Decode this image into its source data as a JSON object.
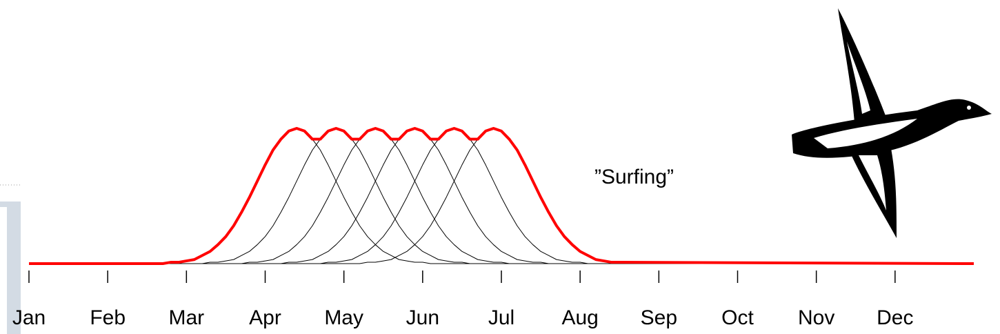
{
  "chart_data": {
    "type": "line",
    "annotation": "”Surfing”",
    "x": [
      0,
      1.5,
      1.6,
      1.7,
      1.8,
      1.9,
      2.0,
      2.1,
      2.2,
      2.3,
      2.4,
      2.5,
      2.6,
      2.7,
      2.8,
      2.9,
      3.0,
      3.1,
      3.2,
      3.3,
      3.4,
      3.5,
      3.6,
      3.7,
      3.8,
      3.9,
      4.0,
      4.1,
      4.2,
      4.3,
      4.4,
      4.5,
      4.6,
      4.7,
      4.8,
      4.9,
      5.0,
      5.1,
      5.2,
      5.3,
      5.4,
      5.5,
      5.6,
      5.7,
      5.8,
      5.9,
      6.0,
      6.1,
      6.2,
      6.3,
      6.4,
      6.5,
      6.6,
      6.7,
      6.8,
      6.9,
      7.0,
      7.1,
      7.2,
      7.3,
      7.4,
      7.5,
      12
    ],
    "xlim": [
      0,
      12
    ],
    "xticks": [
      {
        "value": 0,
        "label": "Jan"
      },
      {
        "value": 1,
        "label": "Feb"
      },
      {
        "value": 2,
        "label": "Mar"
      },
      {
        "value": 3,
        "label": "Apr"
      },
      {
        "value": 4,
        "label": "May"
      },
      {
        "value": 5,
        "label": "Jun"
      },
      {
        "value": 6,
        "label": "Jul"
      },
      {
        "value": 7,
        "label": "Aug"
      },
      {
        "value": 8,
        "label": "Sep"
      },
      {
        "value": 9,
        "label": "Oct"
      },
      {
        "value": 10,
        "label": "Nov"
      },
      {
        "value": 11,
        "label": "Dec"
      }
    ],
    "ylim": [
      0,
      1
    ],
    "series": [
      {
        "color": "#000000",
        "linewidth": 1,
        "values": [
          0,
          0,
          0,
          0,
          0.01,
          0.01,
          0.02,
          0.03,
          0.06,
          0.09,
          0.14,
          0.2,
          0.28,
          0.38,
          0.49,
          0.61,
          0.73,
          0.84,
          0.92,
          0.98,
          1,
          0.98,
          0.92,
          0.84,
          0.73,
          0.61,
          0.49,
          0.38,
          0.28,
          0.2,
          0.14,
          0.09,
          0.06,
          0.03,
          0.02,
          0.01,
          0.01,
          0,
          0,
          0,
          0,
          0,
          0,
          0,
          0,
          0,
          0,
          0,
          0,
          0,
          0,
          0,
          0,
          0,
          0,
          0,
          0,
          0,
          0,
          0,
          0,
          0,
          0
        ]
      },
      {
        "color": "#000000",
        "linewidth": 1,
        "values": [
          0,
          0,
          0,
          0,
          0,
          0,
          0,
          0,
          0,
          0.01,
          0.01,
          0.02,
          0.03,
          0.06,
          0.09,
          0.14,
          0.2,
          0.28,
          0.38,
          0.49,
          0.61,
          0.73,
          0.84,
          0.92,
          0.98,
          1,
          0.98,
          0.92,
          0.84,
          0.73,
          0.61,
          0.49,
          0.38,
          0.28,
          0.2,
          0.14,
          0.09,
          0.06,
          0.03,
          0.02,
          0.01,
          0.01,
          0,
          0,
          0,
          0,
          0,
          0,
          0,
          0,
          0,
          0,
          0,
          0,
          0,
          0,
          0,
          0,
          0,
          0,
          0,
          0,
          0
        ]
      },
      {
        "color": "#000000",
        "linewidth": 1,
        "values": [
          0,
          0,
          0,
          0,
          0,
          0,
          0,
          0,
          0,
          0,
          0,
          0,
          0,
          0,
          0.01,
          0.01,
          0.02,
          0.03,
          0.06,
          0.09,
          0.14,
          0.2,
          0.28,
          0.38,
          0.49,
          0.61,
          0.73,
          0.84,
          0.92,
          0.98,
          1,
          0.98,
          0.92,
          0.84,
          0.73,
          0.61,
          0.49,
          0.38,
          0.28,
          0.2,
          0.14,
          0.09,
          0.06,
          0.03,
          0.02,
          0.01,
          0.01,
          0,
          0,
          0,
          0,
          0,
          0,
          0,
          0,
          0,
          0,
          0,
          0,
          0,
          0,
          0,
          0
        ]
      },
      {
        "color": "#000000",
        "linewidth": 1,
        "values": [
          0,
          0,
          0,
          0,
          0,
          0,
          0,
          0,
          0,
          0,
          0,
          0,
          0,
          0,
          0,
          0,
          0,
          0,
          0,
          0.01,
          0.01,
          0.02,
          0.03,
          0.06,
          0.09,
          0.14,
          0.2,
          0.28,
          0.38,
          0.49,
          0.61,
          0.73,
          0.84,
          0.92,
          0.98,
          1,
          0.98,
          0.92,
          0.84,
          0.73,
          0.61,
          0.49,
          0.38,
          0.28,
          0.2,
          0.14,
          0.09,
          0.06,
          0.03,
          0.02,
          0.01,
          0.01,
          0,
          0,
          0,
          0,
          0,
          0,
          0,
          0,
          0,
          0,
          0
        ]
      },
      {
        "color": "#000000",
        "linewidth": 1,
        "values": [
          0,
          0,
          0,
          0,
          0,
          0,
          0,
          0,
          0,
          0,
          0,
          0,
          0,
          0,
          0,
          0,
          0,
          0,
          0,
          0,
          0,
          0,
          0,
          0,
          0.01,
          0.01,
          0.02,
          0.03,
          0.06,
          0.09,
          0.14,
          0.2,
          0.28,
          0.38,
          0.49,
          0.61,
          0.73,
          0.84,
          0.92,
          0.98,
          1,
          0.98,
          0.92,
          0.84,
          0.73,
          0.61,
          0.49,
          0.38,
          0.28,
          0.2,
          0.14,
          0.09,
          0.06,
          0.03,
          0.02,
          0.01,
          0.01,
          0,
          0,
          0,
          0,
          0,
          0
        ]
      },
      {
        "color": "#000000",
        "linewidth": 1,
        "values": [
          0,
          0,
          0,
          0,
          0,
          0,
          0,
          0,
          0,
          0,
          0,
          0,
          0,
          0,
          0,
          0,
          0,
          0,
          0,
          0,
          0,
          0,
          0,
          0,
          0,
          0,
          0,
          0,
          0,
          0.01,
          0.01,
          0.02,
          0.03,
          0.06,
          0.09,
          0.14,
          0.2,
          0.28,
          0.38,
          0.49,
          0.61,
          0.73,
          0.84,
          0.92,
          0.98,
          1,
          0.98,
          0.92,
          0.84,
          0.73,
          0.61,
          0.49,
          0.38,
          0.28,
          0.2,
          0.14,
          0.09,
          0.06,
          0.03,
          0.02,
          0.01,
          0.01,
          0
        ]
      },
      {
        "color": "#ff0000",
        "linewidth": 4,
        "values": [
          0,
          0,
          0,
          0,
          0.01,
          0.01,
          0.02,
          0.03,
          0.06,
          0.09,
          0.14,
          0.2,
          0.28,
          0.38,
          0.49,
          0.61,
          0.73,
          0.84,
          0.92,
          0.98,
          1,
          0.98,
          0.92,
          0.92,
          0.98,
          1,
          0.98,
          0.92,
          0.92,
          0.98,
          1,
          0.98,
          0.92,
          0.92,
          0.98,
          1,
          0.98,
          0.92,
          0.92,
          0.98,
          1,
          0.98,
          0.92,
          0.92,
          0.98,
          1,
          0.98,
          0.92,
          0.84,
          0.73,
          0.61,
          0.49,
          0.38,
          0.28,
          0.2,
          0.14,
          0.09,
          0.06,
          0.03,
          0.02,
          0.01,
          0.01,
          0
        ]
      }
    ]
  }
}
